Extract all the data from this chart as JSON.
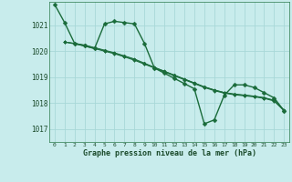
{
  "title": "Graphe pression niveau de la mer (hPa)",
  "background_color": "#c8ecec",
  "grid_color": "#a8d8d8",
  "line_color": "#1a6b3a",
  "xlim": [
    -0.5,
    23.5
  ],
  "ylim": [
    1016.5,
    1021.9
  ],
  "yticks": [
    1017,
    1018,
    1019,
    1020,
    1021
  ],
  "xticks": [
    0,
    1,
    2,
    3,
    4,
    5,
    6,
    7,
    8,
    9,
    10,
    11,
    12,
    13,
    14,
    15,
    16,
    17,
    18,
    19,
    20,
    21,
    22,
    23
  ],
  "series": [
    {
      "x": [
        0,
        1,
        2,
        3,
        4,
        5,
        6,
        7,
        8,
        9,
        10,
        11,
        12,
        13,
        14,
        15,
        16,
        17,
        18,
        19,
        20,
        21,
        22,
        23
      ],
      "y": [
        1021.8,
        1021.1,
        1020.3,
        1020.2,
        1020.1,
        1021.05,
        1021.15,
        1021.1,
        1021.05,
        1020.3,
        1019.35,
        1019.15,
        1018.95,
        1018.75,
        1018.55,
        1017.2,
        1017.35,
        1018.3,
        1018.7,
        1018.7,
        1018.6,
        1018.4,
        1018.2,
        1017.7
      ],
      "marker": "D",
      "markersize": 2.5,
      "linewidth": 1.0
    },
    {
      "x": [
        1,
        2,
        3,
        4,
        5,
        6,
        7,
        8,
        9,
        10,
        11,
        12,
        13,
        14,
        15,
        16,
        17,
        18,
        19,
        20,
        21,
        22,
        23
      ],
      "y": [
        1020.35,
        1020.28,
        1020.2,
        1020.1,
        1020.0,
        1019.9,
        1019.78,
        1019.65,
        1019.5,
        1019.35,
        1019.2,
        1019.05,
        1018.9,
        1018.75,
        1018.6,
        1018.48,
        1018.38,
        1018.32,
        1018.28,
        1018.24,
        1018.18,
        1018.08,
        1017.7
      ],
      "marker": "D",
      "markersize": 2.0,
      "linewidth": 0.8
    },
    {
      "x": [
        1,
        2,
        3,
        4,
        5,
        6,
        7,
        8,
        9,
        10,
        11,
        12,
        13,
        14,
        15,
        16,
        17,
        18,
        19,
        20,
        21,
        22,
        23
      ],
      "y": [
        1020.35,
        1020.3,
        1020.22,
        1020.12,
        1020.02,
        1019.92,
        1019.8,
        1019.68,
        1019.52,
        1019.37,
        1019.22,
        1019.07,
        1018.92,
        1018.77,
        1018.62,
        1018.5,
        1018.4,
        1018.34,
        1018.3,
        1018.26,
        1018.2,
        1018.1,
        1017.72
      ],
      "marker": "D",
      "markersize": 1.8,
      "linewidth": 0.7
    },
    {
      "x": [
        1,
        2,
        3,
        4,
        5,
        6,
        7,
        8,
        9,
        10,
        11,
        12,
        13,
        14,
        15,
        16,
        17,
        18,
        19,
        20,
        21,
        22,
        23
      ],
      "y": [
        1020.35,
        1020.3,
        1020.24,
        1020.14,
        1020.04,
        1019.94,
        1019.82,
        1019.7,
        1019.54,
        1019.38,
        1019.23,
        1019.08,
        1018.93,
        1018.78,
        1018.63,
        1018.51,
        1018.41,
        1018.35,
        1018.31,
        1018.27,
        1018.21,
        1018.11,
        1017.73
      ],
      "marker": "D",
      "markersize": 1.5,
      "linewidth": 0.6
    }
  ]
}
